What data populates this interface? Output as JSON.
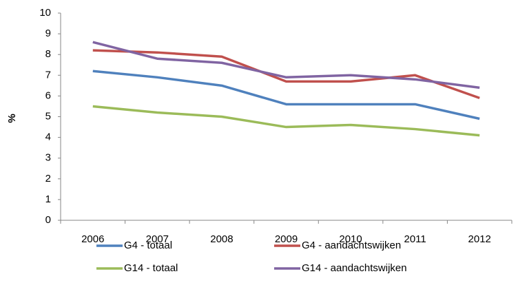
{
  "chart_data": {
    "type": "line",
    "y_label": "%",
    "categories": [
      "2006",
      "2007",
      "2008",
      "2009",
      "2010",
      "2011",
      "2012"
    ],
    "series": [
      {
        "name": "G4 - totaal",
        "color": "#4f81bd",
        "values": [
          7.2,
          6.9,
          6.5,
          5.6,
          5.6,
          5.6,
          4.9
        ]
      },
      {
        "name": "G4 - aandachtswijken",
        "color": "#c0504d",
        "values": [
          8.2,
          8.1,
          7.9,
          6.7,
          6.7,
          7.0,
          5.9
        ]
      },
      {
        "name": "G14 - totaal",
        "color": "#9bbb59",
        "values": [
          5.5,
          5.2,
          5.0,
          4.5,
          4.6,
          4.4,
          4.1
        ]
      },
      {
        "name": "G14 - aandachtswijken",
        "color": "#8064a2",
        "values": [
          8.6,
          7.8,
          7.6,
          6.9,
          7.0,
          6.8,
          6.4
        ]
      }
    ],
    "ylim": [
      0,
      10
    ],
    "yticks": [
      0,
      1,
      2,
      3,
      4,
      5,
      6,
      7,
      8,
      9,
      10
    ],
    "grid": false
  }
}
